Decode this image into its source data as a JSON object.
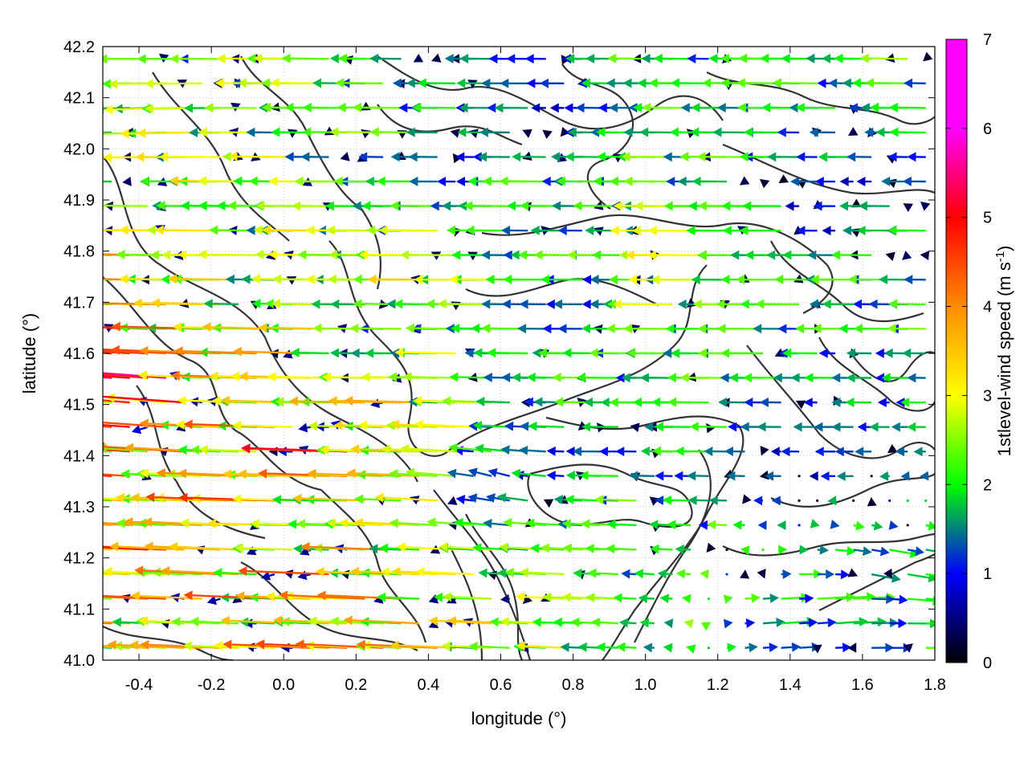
{
  "chart_data": {
    "type": "vector-field",
    "title": "",
    "xlabel": "longitude (°)",
    "ylabel": "latitude (°)",
    "xlim": [
      -0.5,
      1.8
    ],
    "ylim": [
      41.0,
      42.2
    ],
    "x_ticks": [
      "-0.4",
      "-0.2",
      "0.0",
      "0.2",
      "0.4",
      "0.6",
      "0.8",
      "1.0",
      "1.2",
      "1.4",
      "1.6",
      "1.8"
    ],
    "x_tick_values": [
      -0.4,
      -0.2,
      0.0,
      0.2,
      0.4,
      0.6,
      0.8,
      1.0,
      1.2,
      1.4,
      1.6,
      1.8
    ],
    "y_ticks": [
      "41.0",
      "41.1",
      "41.2",
      "41.3",
      "41.4",
      "41.5",
      "41.6",
      "41.7",
      "41.8",
      "41.9",
      "42.0",
      "42.1",
      "42.2"
    ],
    "y_tick_values": [
      41.0,
      41.1,
      41.2,
      41.3,
      41.4,
      41.5,
      41.6,
      41.7,
      41.8,
      41.9,
      42.0,
      42.1,
      42.2
    ],
    "grid": true,
    "colorbar": {
      "label": "1stlevel-wind speed (m s-1)",
      "label_main": "1stlevel-wind speed (m s",
      "label_sup": "-1",
      "label_end": ")",
      "range": [
        0,
        7
      ],
      "ticks": [
        "0",
        "1",
        "2",
        "3",
        "4",
        "5",
        "6",
        "7"
      ],
      "colors": [
        "#000000",
        "#0000ff",
        "#00ff00",
        "#ffff00",
        "#ff8c00",
        "#ff0000",
        "#ff00ff"
      ]
    },
    "wind_vectors": [
      {
        "lon": -0.4,
        "lat": 41.6,
        "u": -5.0,
        "v": 0.3,
        "speed": 5.0
      },
      {
        "lon": -0.35,
        "lat": 41.52,
        "u": -4.8,
        "v": 0.5,
        "speed": 4.8
      },
      {
        "lon": -0.4,
        "lat": 41.42,
        "u": -5.2,
        "v": 0.4,
        "speed": 5.2
      },
      {
        "lon": -0.3,
        "lat": 41.3,
        "u": -4.2,
        "v": 0.2,
        "speed": 4.2
      },
      {
        "lon": -0.15,
        "lat": 41.55,
        "u": -3.8,
        "v": 0.1,
        "speed": 3.8
      },
      {
        "lon": 0.0,
        "lat": 41.55,
        "u": -3.5,
        "v": 0.1,
        "speed": 3.5
      },
      {
        "lon": 0.15,
        "lat": 41.47,
        "u": -4.8,
        "v": 0.0,
        "speed": 4.8
      },
      {
        "lon": 0.15,
        "lat": 41.43,
        "u": -4.6,
        "v": 0.2,
        "speed": 4.6
      },
      {
        "lon": 0.1,
        "lat": 41.3,
        "u": -3.6,
        "v": 0.1,
        "speed": 3.6
      },
      {
        "lon": 0.0,
        "lat": 41.25,
        "u": -4.0,
        "v": 0.1,
        "speed": 4.0
      },
      {
        "lon": -0.15,
        "lat": 41.2,
        "u": -3.8,
        "v": 0.2,
        "speed": 3.8
      },
      {
        "lon": 0.25,
        "lat": 41.08,
        "u": -4.2,
        "v": 0.2,
        "speed": 4.2
      },
      {
        "lon": -0.3,
        "lat": 41.68,
        "u": -3.2,
        "v": 0.0,
        "speed": 3.2
      },
      {
        "lon": -0.2,
        "lat": 41.78,
        "u": -3.0,
        "v": 0.0,
        "speed": 3.0
      },
      {
        "lon": -0.35,
        "lat": 42.18,
        "u": -2.0,
        "v": 0.0,
        "speed": 2.0
      },
      {
        "lon": -0.35,
        "lat": 42.06,
        "u": -2.5,
        "v": -0.1,
        "speed": 2.5
      },
      {
        "lon": 0.2,
        "lat": 41.9,
        "u": -2.5,
        "v": 0.0,
        "speed": 2.5
      },
      {
        "lon": 0.5,
        "lat": 41.75,
        "u": -3.0,
        "v": 0.0,
        "speed": 3.0
      },
      {
        "lon": 0.2,
        "lat": 41.7,
        "u": -2.5,
        "v": 0.0,
        "speed": 2.5
      },
      {
        "lon": 0.3,
        "lat": 41.6,
        "u": -1.8,
        "v": 0.0,
        "speed": 1.8
      },
      {
        "lon": 0.8,
        "lat": 41.7,
        "u": -1.2,
        "v": 0.0,
        "speed": 1.2
      },
      {
        "lon": 1.1,
        "lat": 41.72,
        "u": -3.0,
        "v": 0.0,
        "speed": 3.0
      },
      {
        "lon": 1.15,
        "lat": 41.83,
        "u": -2.8,
        "v": 0.0,
        "speed": 2.8
      },
      {
        "lon": 1.2,
        "lat": 41.65,
        "u": -1.8,
        "v": 0.0,
        "speed": 1.8
      },
      {
        "lon": 1.0,
        "lat": 41.5,
        "u": -2.0,
        "v": 0.0,
        "speed": 2.0
      },
      {
        "lon": 0.9,
        "lat": 41.42,
        "u": -1.5,
        "v": 0.0,
        "speed": 1.5
      },
      {
        "lon": 0.6,
        "lat": 41.35,
        "u": -0.8,
        "v": 0.3,
        "speed": 0.9
      },
      {
        "lon": 1.55,
        "lat": 41.1,
        "u": 2.2,
        "v": 0.2,
        "speed": 2.2
      },
      {
        "lon": 1.7,
        "lat": 41.03,
        "u": 2.0,
        "v": 0.0,
        "speed": 2.0
      },
      {
        "lon": 1.65,
        "lat": 41.17,
        "u": 1.8,
        "v": -0.4,
        "speed": 1.8
      },
      {
        "lon": 1.4,
        "lat": 41.06,
        "u": 1.5,
        "v": 0.1,
        "speed": 1.5
      },
      {
        "lon": 0.5,
        "lat": 41.95,
        "u": -1.0,
        "v": 0.0,
        "speed": 1.0
      },
      {
        "lon": 0.7,
        "lat": 42.1,
        "u": -1.2,
        "v": 0.0,
        "speed": 1.2
      },
      {
        "lon": 1.5,
        "lat": 41.4,
        "u": -0.8,
        "v": 0.0,
        "speed": 0.8
      },
      {
        "lon": 1.5,
        "lat": 41.9,
        "u": -1.0,
        "v": 0.0,
        "speed": 1.0
      }
    ]
  }
}
